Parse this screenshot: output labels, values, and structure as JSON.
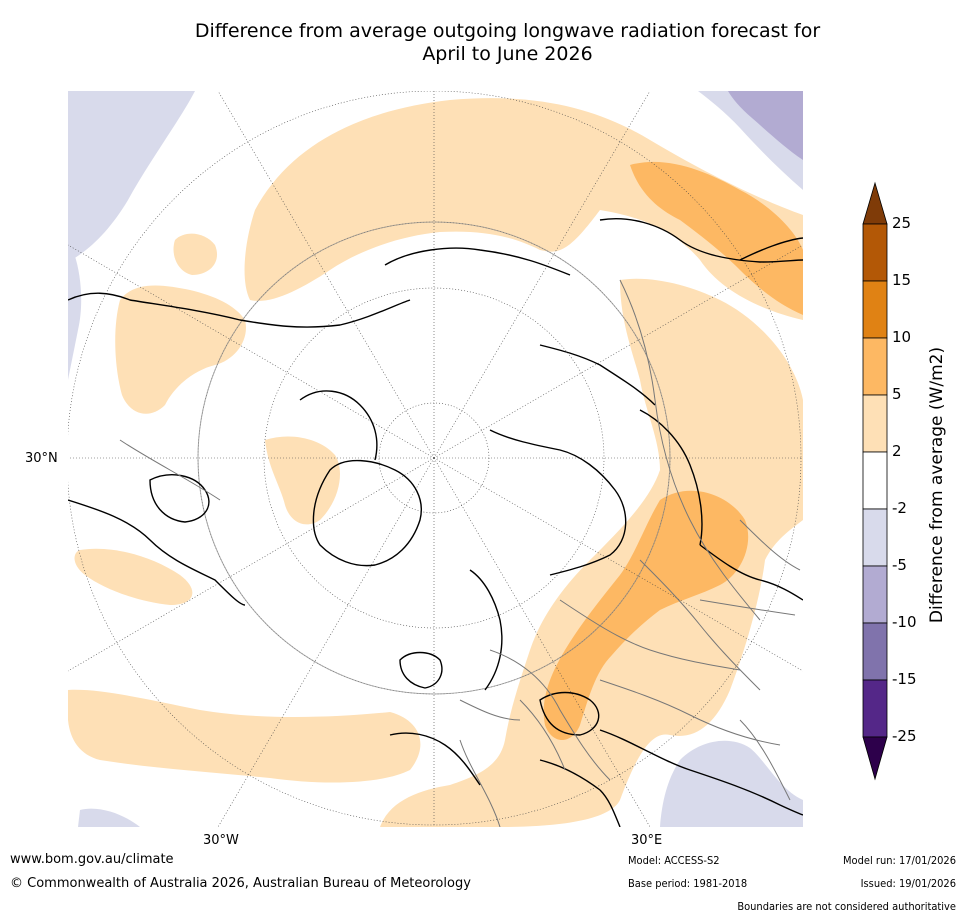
{
  "title": {
    "line1": "Difference from average outgoing longwave radiation forecast for",
    "line2": "April to June 2026"
  },
  "map": {
    "projection": "north-polar-stereographic",
    "graticule_labels": {
      "lat_30n": "30°N",
      "lon_30w": "30°W",
      "lon_30e": "30°E"
    }
  },
  "colorbar": {
    "title": "Difference from average (W/m2)",
    "ticks": [
      "25",
      "15",
      "10",
      "5",
      "2",
      "-2",
      "-5",
      "-10",
      "-15",
      "-25"
    ],
    "bins": [
      {
        "range": "above 25",
        "color": "#7f3b08"
      },
      {
        "range": "15 to 25",
        "color": "#b35806"
      },
      {
        "range": "10 to 15",
        "color": "#e08214"
      },
      {
        "range": "5 to 10",
        "color": "#fdb863"
      },
      {
        "range": "2 to 5",
        "color": "#fee0b6"
      },
      {
        "range": "-2 to 2",
        "color": "#ffffff"
      },
      {
        "range": "-5 to -2",
        "color": "#d8daeb"
      },
      {
        "range": "-10 to -5",
        "color": "#b2abd2"
      },
      {
        "range": "-15 to -10",
        "color": "#8073ac"
      },
      {
        "range": "-25 to -15",
        "color": "#542788"
      },
      {
        "range": "below -25",
        "color": "#2d004b"
      }
    ]
  },
  "footer": {
    "url": "www.bom.gov.au/climate",
    "copyright": "© Commonwealth of Australia 2026, Australian Bureau of Meteorology",
    "model": "Model: ACCESS-S2",
    "base_period": "Base period: 1981-2018",
    "model_run": "Model run: 17/01/2026",
    "issued": "Issued: 19/01/2026",
    "disclaimer": "Boundaries are not considered authoritative"
  }
}
